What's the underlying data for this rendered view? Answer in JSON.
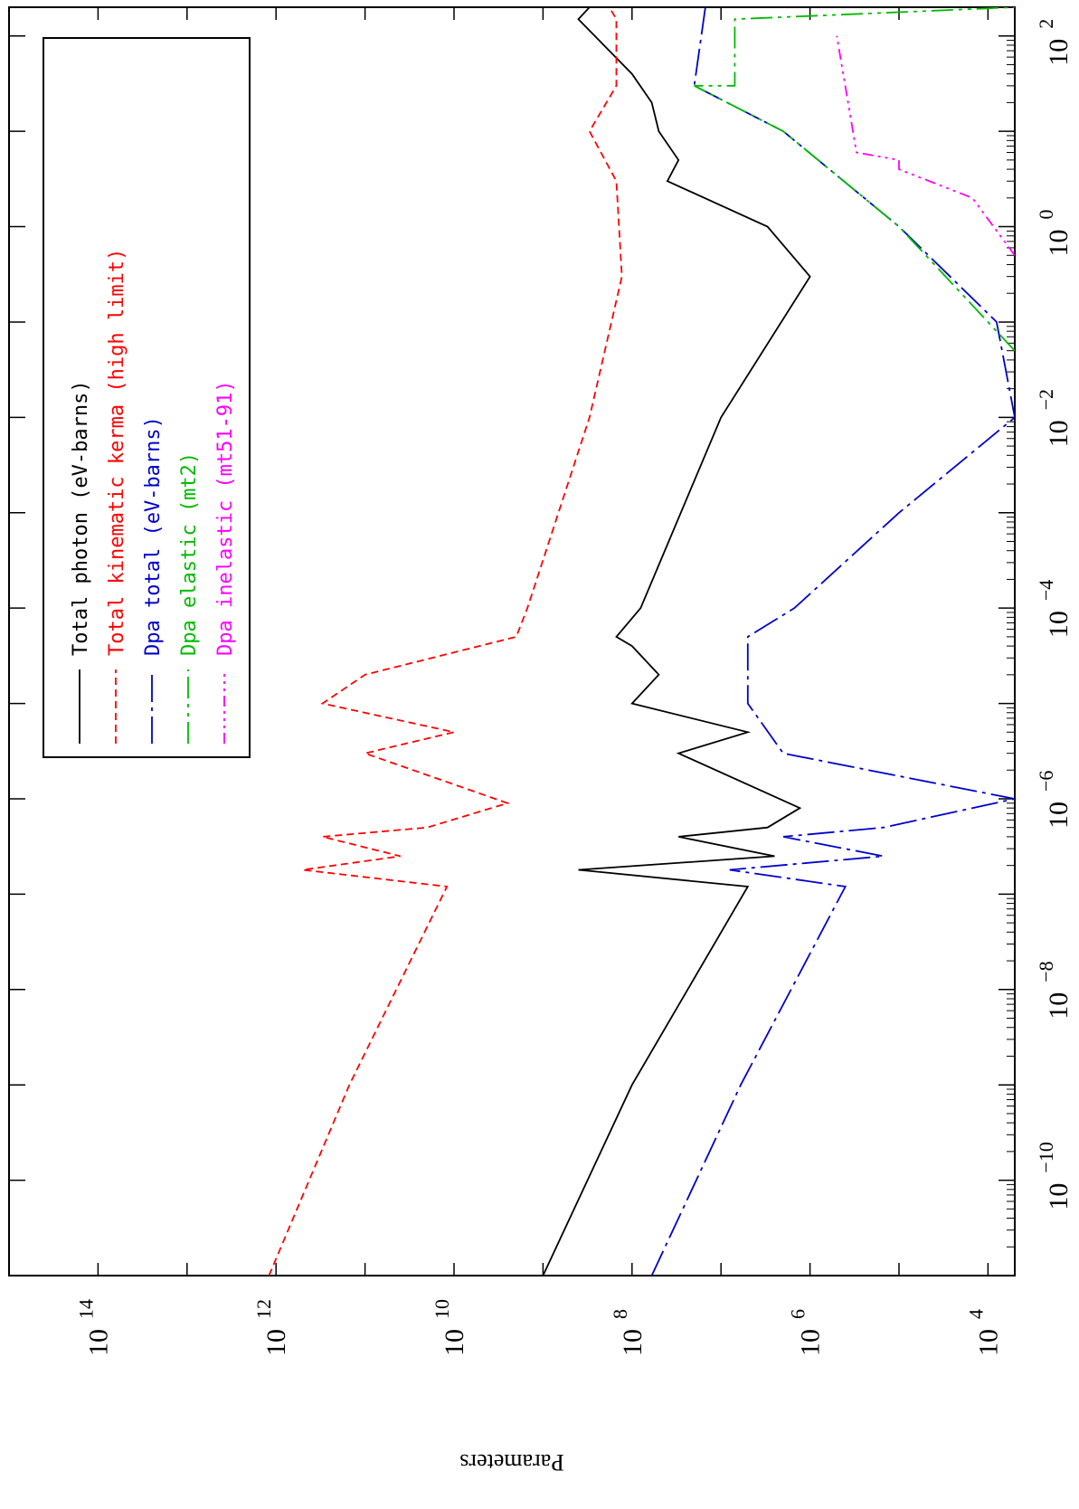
{
  "chart_data": {
    "type": "line",
    "orientation": "rotated-90-clockwise",
    "xlabel": "",
    "ylabel": "Parameters",
    "xscale": "log",
    "yscale": "log",
    "xlim": [
      1e-11,
      200
    ],
    "ylim": [
      5000,
      1000000000000000.0
    ],
    "x_ticks": [
      {
        "value": 1e-10,
        "base": "10",
        "exp": "−10"
      },
      {
        "value": 1e-08,
        "base": "10",
        "exp": "−8"
      },
      {
        "value": 1e-06,
        "base": "10",
        "exp": "−6"
      },
      {
        "value": 0.0001,
        "base": "10",
        "exp": "−4"
      },
      {
        "value": 0.01,
        "base": "10",
        "exp": "−2"
      },
      {
        "value": 1,
        "base": "10",
        "exp": "0"
      },
      {
        "value": 100,
        "base": "10",
        "exp": "2"
      }
    ],
    "y_ticks": [
      {
        "value": 10000,
        "base": "10",
        "exp": "4"
      },
      {
        "value": 1000000,
        "base": "10",
        "exp": "6"
      },
      {
        "value": 100000000,
        "base": "10",
        "exp": "8"
      },
      {
        "value": 10000000000,
        "base": "10",
        "exp": "10"
      },
      {
        "value": 1000000000000,
        "base": "10",
        "exp": "12"
      },
      {
        "value": 100000000000000,
        "base": "10",
        "exp": "14"
      }
    ],
    "legend_position": "top-left",
    "series": [
      {
        "name": "Total photon (eV-barns)",
        "color": "#000000",
        "dash": "",
        "points": [
          [
            1e-11,
            1000000000.0
          ],
          [
            1e-09,
            100000000.0
          ],
          [
            1.2e-07,
            5000000.0
          ],
          [
            1.8e-07,
            400000000.0
          ],
          [
            2.5e-07,
            2500000.0
          ],
          [
            4e-07,
            30000000.0
          ],
          [
            5e-07,
            3000000.0
          ],
          [
            8e-07,
            1300000.0
          ],
          [
            3e-06,
            30000000.0
          ],
          [
            5e-06,
            5000000.0
          ],
          [
            1e-05,
            100000000.0
          ],
          [
            2e-05,
            50000000.0
          ],
          [
            4e-05,
            100000000.0
          ],
          [
            5e-05,
            150000000.0
          ],
          [
            0.0001,
            80000000.0
          ],
          [
            0.01,
            10000000.0
          ],
          [
            0.3,
            1000000.0
          ],
          [
            1,
            3000000.0
          ],
          [
            3,
            40000000.0
          ],
          [
            5,
            30000000.0
          ],
          [
            10,
            50000000.0
          ],
          [
            20,
            60000000.0
          ],
          [
            40,
            100000000.0
          ],
          [
            150,
            400000000.0
          ],
          [
            200,
            300000000.0
          ]
        ]
      },
      {
        "name": "Total kinematic kerma (high limit)",
        "color": "#ff0000",
        "dash": "8,5",
        "points": [
          [
            1e-11,
            1200000000000.0
          ],
          [
            1e-09,
            150000000000.0
          ],
          [
            1.2e-07,
            12000000000.0
          ],
          [
            1.8e-07,
            500000000000.0
          ],
          [
            2.5e-07,
            40000000000.0
          ],
          [
            4e-07,
            300000000000.0
          ],
          [
            5e-07,
            20000000000.0
          ],
          [
            9e-07,
            2500000000.0
          ],
          [
            3e-06,
            100000000000.0
          ],
          [
            5e-06,
            10000000000.0
          ],
          [
            1e-05,
            300000000000.0
          ],
          [
            2e-05,
            100000000000.0
          ],
          [
            5e-05,
            2000000000.0
          ],
          [
            0.0001,
            1500000000.0
          ],
          [
            0.01,
            300000000.0
          ],
          [
            0.3,
            130000000.0
          ],
          [
            3,
            150000000.0
          ],
          [
            10,
            300000000.0
          ],
          [
            30,
            150000000.0
          ],
          [
            150,
            150000000.0
          ],
          [
            200,
            180000000.0
          ]
        ]
      },
      {
        "name": "Dpa total (eV-barns)",
        "color": "#0000cc",
        "dash": "30,6,4,6",
        "points": [
          [
            1e-11,
            60000000.0
          ],
          [
            1e-09,
            6000000.0
          ],
          [
            1.2e-07,
            400000.0
          ],
          [
            1.8e-07,
            8000000.0
          ],
          [
            2.5e-07,
            150000.0
          ],
          [
            4e-07,
            2000000.0
          ],
          [
            5e-07,
            150000.0
          ],
          [
            1e-06,
            5000.0
          ],
          [
            3e-06,
            2000000.0
          ],
          [
            1e-05,
            5000000.0
          ],
          [
            5e-05,
            5000000.0
          ],
          [
            0.0001,
            1500000.0
          ],
          [
            0.001,
            100000.0
          ],
          [
            0.01,
            5000.0
          ],
          [
            0.1,
            8000.0
          ],
          [
            1,
            100000.0
          ],
          [
            10,
            2000000.0
          ],
          [
            30,
            20000000.0
          ],
          [
            200,
            15000000.0
          ]
        ]
      },
      {
        "name": "Dpa elastic (mt2)",
        "color": "#00bb00",
        "dash": "24,6,4,6,4,6",
        "points": [
          [
            0.05,
            5000.0
          ],
          [
            1,
            100000.0
          ],
          [
            10,
            2000000.0
          ],
          [
            30,
            20000000.0
          ],
          [
            30,
            7000000.0
          ],
          [
            150,
            7000000.0
          ],
          [
            200,
            5000.0
          ]
        ]
      },
      {
        "name": "Dpa inelastic (mt51-91)",
        "color": "#ff00ff",
        "dash": "12,5,3,5,3,5,3,5",
        "points": [
          [
            0.5,
            5000.0
          ],
          [
            2,
            15000.0
          ],
          [
            4,
            100000.0
          ],
          [
            5,
            100000.0
          ],
          [
            6,
            300000.0
          ],
          [
            100,
            500000.0
          ]
        ]
      }
    ]
  }
}
